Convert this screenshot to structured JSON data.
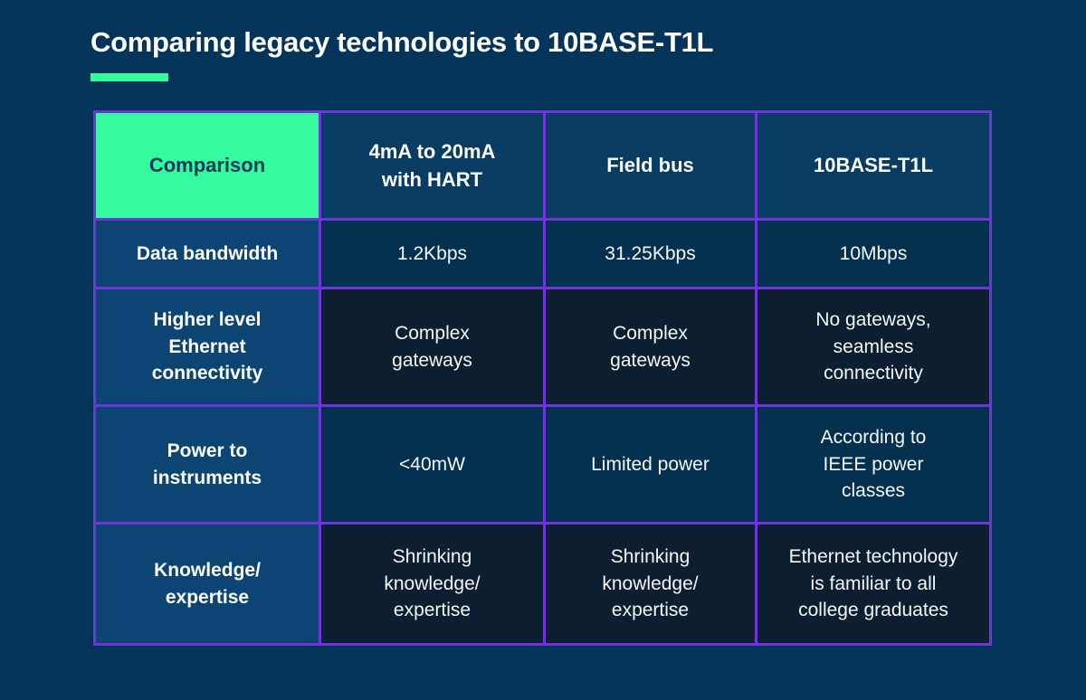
{
  "title": "Comparing legacy technologies to 10BASE-T1L",
  "colors": {
    "page_background": "#04345A",
    "accent_green": "#33FB9E",
    "grid_border_purple": "#6F35D9",
    "header_cell_navy": "#083C62",
    "row_label_blue": "#0C4574",
    "data_cell_medium_navy": "#04304F",
    "data_cell_dark_navy": "#0C1E30",
    "title_text": "#FFFFFF",
    "corner_text_navy": "#093A5E"
  },
  "table": {
    "header": [
      "Comparison",
      "4mA to 20mA\nwith HART",
      "Field bus",
      "10BASE-T1L"
    ],
    "rows": [
      {
        "label": "Data bandwidth",
        "cells": [
          "1.2Kbps",
          "31.25Kbps",
          "10Mbps"
        ]
      },
      {
        "label": "Higher level\nEthernet\nconnectivity",
        "cells": [
          "Complex\ngateways",
          "Complex\ngateways",
          "No gateways,\nseamless\nconnectivity"
        ]
      },
      {
        "label": "Power to\ninstruments",
        "cells": [
          "<40mW",
          "Limited power",
          "According to\nIEEE power\nclasses"
        ]
      },
      {
        "label": "Knowledge/\nexpertise",
        "cells": [
          "Shrinking\nknowledge/\nexpertise",
          "Shrinking\nknowledge/\nexpertise",
          "Ethernet technology\nis familiar to all\ncollege graduates"
        ]
      }
    ]
  },
  "chart_data": {
    "type": "table",
    "title": "Comparing legacy technologies to 10BASE-T1L",
    "columns": [
      "Comparison",
      "4mA to 20mA with HART",
      "Field bus",
      "10BASE-T1L"
    ],
    "rows": [
      [
        "Data bandwidth",
        "1.2Kbps",
        "31.25Kbps",
        "10Mbps"
      ],
      [
        "Higher level Ethernet connectivity",
        "Complex gateways",
        "Complex gateways",
        "No gateways, seamless connectivity"
      ],
      [
        "Power to instruments",
        "<40mW",
        "Limited power",
        "According to IEEE power classes"
      ],
      [
        "Knowledge/ expertise",
        "Shrinking knowledge/ expertise",
        "Shrinking knowledge/ expertise",
        "Ethernet technology is familiar to all college graduates"
      ]
    ],
    "legend_position": "none",
    "grid": true
  }
}
